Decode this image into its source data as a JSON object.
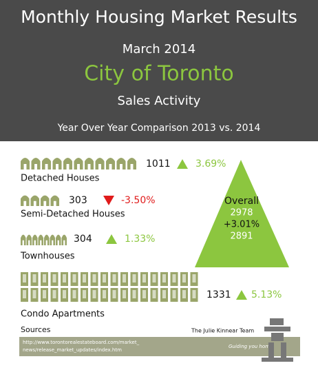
{
  "header": {
    "title": "Monthly Housing Market Results",
    "date": "March 2014",
    "city": "City of Toronto",
    "subtitle": "Sales Activity",
    "comparison": "Year Over Year Comparison 2013 vs. 2014"
  },
  "rows": [
    {
      "label": "Detached Houses",
      "count": "1011",
      "change": "3.69%"
    },
    {
      "label": "Semi-Detached Houses",
      "count": "303",
      "change": "-3.50%"
    },
    {
      "label": "Townhouses",
      "count": "304",
      "change": "1.33%"
    },
    {
      "label": "Condo Apartments",
      "count": "1331",
      "change": "5.13%"
    }
  ],
  "overall": {
    "label": "Overall",
    "current": "2978",
    "change": "+3.01%",
    "previous": "2891"
  },
  "sources": {
    "label": "Sources",
    "url": [
      "http://www.torontorealestateboard.com/market_",
      "news/release_market_updates/index.htm"
    ]
  },
  "logo": {
    "name": "The Julie Kinnear Team",
    "tagline": "Guiding you home"
  }
}
